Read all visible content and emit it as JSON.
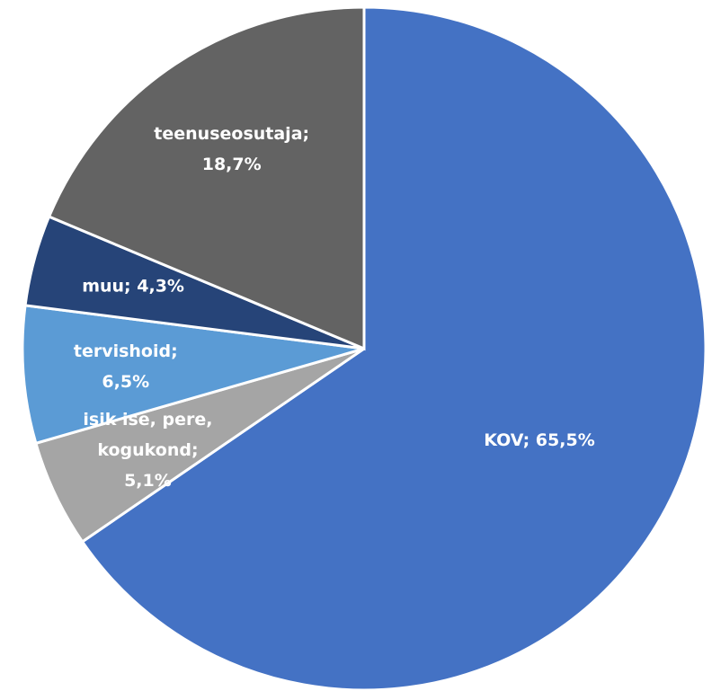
{
  "chart_data": {
    "type": "pie",
    "values": [
      65.5,
      5.1,
      6.5,
      4.3,
      18.7
    ],
    "labels": [
      [
        "KOV; 65,5%"
      ],
      [
        "isik ise, pere,",
        "kogukond;",
        "5,1%"
      ],
      [
        "tervishoid;",
        "6,5%"
      ],
      [
        "muu; 4,3%"
      ],
      [
        "teenuseosutaja;",
        "18,7%"
      ]
    ],
    "colors": [
      "#4472c4",
      "#a5a5a5",
      "#5b9bd5",
      "#264478",
      "#636363"
    ]
  }
}
